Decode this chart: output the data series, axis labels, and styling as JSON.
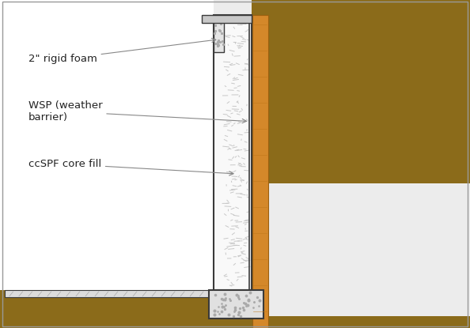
{
  "bg_color": "#ececec",
  "interior_bg": "#ffffff",
  "soil_color": "#8B6B1A",
  "wood_color": "#D4882A",
  "wood_edge_color": "#9B6010",
  "outline_color": "#3a3a3a",
  "foam_texture_color": "#cccccc",
  "concrete_color": "#dcdcdc",
  "footing_color": "#e0e0e0",
  "labels": {
    "rigid_foam": "2\" rigid foam",
    "wsp": "WSP (weather\nbarrier)",
    "ccspf": "ccSPF core fill"
  },
  "font_size": 9.5,
  "font_color": "#222222",
  "arrow_color": "#888888"
}
